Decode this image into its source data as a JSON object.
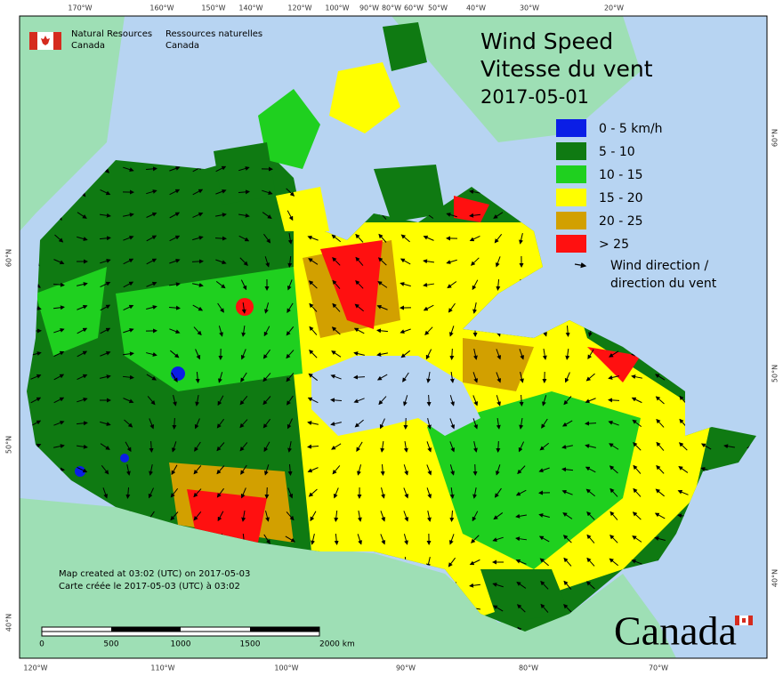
{
  "logo_text": {
    "english": [
      "Natural Resources",
      "Canada"
    ],
    "french": [
      "Ressources naturelles",
      "Canada"
    ]
  },
  "title": [
    "Wind Speed",
    "Vitesse du vent",
    "2017-05-01"
  ],
  "legend": {
    "items": [
      {
        "label": "0 - 5 km/h",
        "color": "#0a1ee6"
      },
      {
        "label": "5 - 10",
        "color": "#0f7a12"
      },
      {
        "label": "10 - 15",
        "color": "#1fd01f"
      },
      {
        "label": "15 - 20",
        "color": "#ffff00"
      },
      {
        "label": "20 - 25",
        "color": "#d2a000"
      },
      {
        "label": "> 25",
        "color": "#ff1010"
      }
    ],
    "arrow_label": [
      "Wind direction /",
      "direction du vent"
    ]
  },
  "graticule": {
    "top": [
      "170°W",
      "160°W",
      "150°W",
      "140°W",
      "120°W",
      "100°W",
      "90°W",
      "80°W",
      "60°W",
      "50°W",
      "40°W",
      "30°W",
      "20°W"
    ],
    "bottom": [
      "120°W",
      "110°W",
      "100°W",
      "90°W",
      "80°W",
      "70°W"
    ],
    "left": [
      "60°N",
      "50°N",
      "40°N"
    ],
    "right": [
      "60°N",
      "50°N",
      "40°N"
    ]
  },
  "credits": [
    "Map created at 03:02 (UTC) on 2017-05-03",
    "Carte créée le 2017-05-03 (UTC) à 03:02"
  ],
  "scale_bar": {
    "labels": [
      "0",
      "500",
      "1000",
      "1500",
      "2000 km"
    ]
  },
  "wordmark": "Canada"
}
